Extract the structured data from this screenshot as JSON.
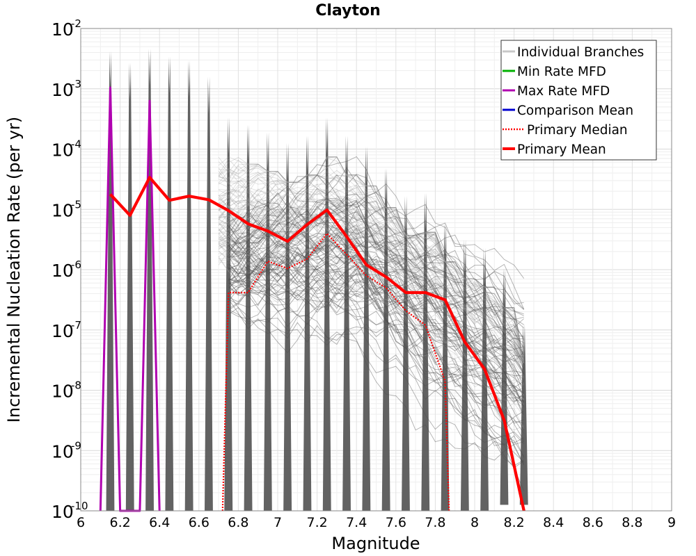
{
  "chart_data": {
    "type": "line",
    "title": "Clayton",
    "xlabel": "Magnitude",
    "ylabel": "Incremental Nucleation Rate (per yr)",
    "xlim": [
      6,
      9
    ],
    "ylim_log10": [
      -10,
      -2
    ],
    "yscale": "log",
    "grid": true,
    "legend_position": "top-right",
    "x_ticks": [
      "6",
      "6.2",
      "6.4",
      "6.6",
      "6.8",
      "7",
      "7.2",
      "7.4",
      "7.6",
      "7.8",
      "8",
      "8.2",
      "8.4",
      "8.6",
      "8.8",
      "9"
    ],
    "y_ticks": [
      {
        "base": "10",
        "exp": "-10",
        "log": -10
      },
      {
        "base": "10",
        "exp": "-9",
        "log": -9
      },
      {
        "base": "10",
        "exp": "-8",
        "log": -8
      },
      {
        "base": "10",
        "exp": "-7",
        "log": -7
      },
      {
        "base": "10",
        "exp": "-6",
        "log": -6
      },
      {
        "base": "10",
        "exp": "-5",
        "log": -5
      },
      {
        "base": "10",
        "exp": "-4",
        "log": -4
      },
      {
        "base": "10",
        "exp": "-3",
        "log": -3
      },
      {
        "base": "10",
        "exp": "-2",
        "log": -2
      }
    ],
    "legend": [
      {
        "label": "Individual Branches",
        "color": "#c8c8c8",
        "style": "solid"
      },
      {
        "label": "Min Rate MFD",
        "color": "#00b000",
        "style": "solid"
      },
      {
        "label": "Max Rate MFD",
        "color": "#b000b0",
        "style": "solid"
      },
      {
        "label": "Comparison Mean",
        "color": "#0000d0",
        "style": "solid"
      },
      {
        "label": "Primary Median",
        "color": "#ff0000",
        "style": "dotted"
      },
      {
        "label": "Primary Mean",
        "color": "#ff0000",
        "style": "thick"
      }
    ],
    "branch_envelope": {
      "color": "#555555",
      "peaks": [
        {
          "x": 6.15,
          "log10": -2.98
        },
        {
          "x": 6.25,
          "log10": -3.17
        },
        {
          "x": 6.35,
          "log10": -2.94
        },
        {
          "x": 6.45,
          "log10": -3.07
        },
        {
          "x": 6.55,
          "log10": -3.13
        },
        {
          "x": 6.65,
          "log10": -3.4
        },
        {
          "x": 6.75,
          "log10": -4.08
        },
        {
          "x": 6.85,
          "log10": -4.2
        },
        {
          "x": 6.95,
          "log10": -4.32
        },
        {
          "x": 7.05,
          "log10": -4.5
        },
        {
          "x": 7.15,
          "log10": -4.38
        },
        {
          "x": 7.25,
          "log10": -4.08
        },
        {
          "x": 7.35,
          "log10": -4.38
        },
        {
          "x": 7.45,
          "log10": -4.56
        },
        {
          "x": 7.55,
          "log10": -4.92
        },
        {
          "x": 7.65,
          "log10": -5.38
        },
        {
          "x": 7.75,
          "log10": -5.33
        },
        {
          "x": 7.85,
          "log10": -5.82
        },
        {
          "x": 7.95,
          "log10": -6.1
        },
        {
          "x": 8.05,
          "log10": -6.24
        },
        {
          "x": 8.15,
          "log10": -6.58
        },
        {
          "x": 8.25,
          "log10": -7.5
        }
      ]
    },
    "series": [
      {
        "name": "Max Rate MFD",
        "color": "#b000b0",
        "points": [
          {
            "x": 6.1,
            "log10": -10
          },
          {
            "x": 6.15,
            "log10": -2.98
          },
          {
            "x": 6.2,
            "log10": -10
          },
          {
            "x": 6.3,
            "log10": -10
          },
          {
            "x": 6.35,
            "log10": -3.2
          },
          {
            "x": 6.4,
            "log10": -10
          }
        ]
      },
      {
        "name": "Primary Median",
        "color": "#ff0000",
        "points": [
          {
            "x": 6.72,
            "log10": -10
          },
          {
            "x": 6.75,
            "log10": -6.38
          },
          {
            "x": 6.85,
            "log10": -6.38
          },
          {
            "x": 6.95,
            "log10": -5.86
          },
          {
            "x": 7.05,
            "log10": -5.98
          },
          {
            "x": 7.15,
            "log10": -5.82
          },
          {
            "x": 7.25,
            "log10": -5.4
          },
          {
            "x": 7.35,
            "log10": -5.75
          },
          {
            "x": 7.45,
            "log10": -6.1
          },
          {
            "x": 7.55,
            "log10": -6.3
          },
          {
            "x": 7.65,
            "log10": -6.68
          },
          {
            "x": 7.75,
            "log10": -6.92
          },
          {
            "x": 7.85,
            "log10": -7.85
          },
          {
            "x": 7.87,
            "log10": -10
          }
        ]
      },
      {
        "name": "Primary Mean",
        "color": "#ff0000",
        "points": [
          {
            "x": 6.15,
            "log10": -4.75
          },
          {
            "x": 6.25,
            "log10": -5.1
          },
          {
            "x": 6.35,
            "log10": -4.47
          },
          {
            "x": 6.45,
            "log10": -4.85
          },
          {
            "x": 6.55,
            "log10": -4.78
          },
          {
            "x": 6.65,
            "log10": -4.84
          },
          {
            "x": 6.75,
            "log10": -5.02
          },
          {
            "x": 6.85,
            "log10": -5.24
          },
          {
            "x": 6.95,
            "log10": -5.36
          },
          {
            "x": 7.05,
            "log10": -5.53
          },
          {
            "x": 7.15,
            "log10": -5.25
          },
          {
            "x": 7.25,
            "log10": -5.01
          },
          {
            "x": 7.35,
            "log10": -5.45
          },
          {
            "x": 7.45,
            "log10": -5.92
          },
          {
            "x": 7.55,
            "log10": -6.12
          },
          {
            "x": 7.65,
            "log10": -6.38
          },
          {
            "x": 7.75,
            "log10": -6.38
          },
          {
            "x": 7.85,
            "log10": -6.5
          },
          {
            "x": 7.95,
            "log10": -7.2
          },
          {
            "x": 8.05,
            "log10": -7.65
          },
          {
            "x": 8.15,
            "log10": -8.5
          },
          {
            "x": 8.25,
            "log10": -10
          }
        ]
      }
    ]
  }
}
